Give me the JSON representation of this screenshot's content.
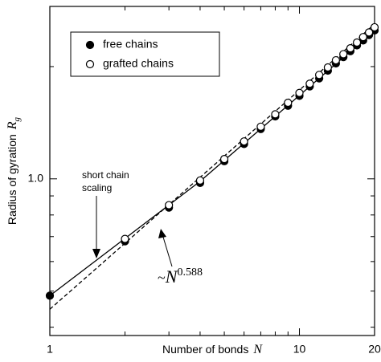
{
  "chart_data": {
    "type": "scatter",
    "xlabel": {
      "text": "Number of bonds",
      "symbol": "N"
    },
    "ylabel": {
      "text": "Radius of gyration",
      "symbol": "R",
      "subscript": "g"
    },
    "log_x": true,
    "log_y": true,
    "xlim": [
      1,
      20
    ],
    "ylim": [
      0.38,
      2.9
    ],
    "xticks": [
      1,
      10,
      20
    ],
    "xminorticks": [
      2,
      3,
      4,
      5,
      6,
      7,
      8,
      9
    ],
    "yticks": [
      {
        "value": 1,
        "label": "1.0"
      }
    ],
    "yminorticks": [
      0.4,
      0.5,
      0.6,
      0.7,
      0.8,
      0.9,
      2
    ],
    "legend": "upper left",
    "series": [
      {
        "name": "free chains",
        "marker": "filled",
        "color": "#000000",
        "x": [
          1,
          2,
          3,
          4,
          5,
          6,
          7,
          8,
          9,
          10,
          11,
          12,
          13,
          14,
          15,
          16,
          17,
          18,
          19,
          20
        ],
        "values": [
          0.486,
          0.68,
          0.837,
          0.975,
          1.115,
          1.24,
          1.36,
          1.47,
          1.57,
          1.67,
          1.77,
          1.86,
          1.95,
          2.04,
          2.12,
          2.2,
          2.28,
          2.35,
          2.43,
          2.5
        ]
      },
      {
        "name": "grafted chains",
        "marker": "open",
        "color": "#000000",
        "x": [
          2,
          3,
          4,
          5,
          6,
          7,
          8,
          9,
          10,
          11,
          12,
          13,
          14,
          15,
          16,
          17,
          18,
          19,
          20
        ],
        "values": [
          0.69,
          0.85,
          0.99,
          1.13,
          1.26,
          1.38,
          1.49,
          1.6,
          1.7,
          1.8,
          1.9,
          1.99,
          2.08,
          2.16,
          2.24,
          2.32,
          2.4,
          2.47,
          2.55
        ]
      }
    ],
    "lines": [
      {
        "style": "solid",
        "x": [
          1,
          4,
          20
        ],
        "values": [
          0.486,
          0.985,
          2.5
        ]
      },
      {
        "style": "dashed",
        "x": [
          1,
          20
        ],
        "values": [
          0.447,
          2.6
        ]
      }
    ],
    "annotations": [
      {
        "lines": [
          "short chain",
          "scaling"
        ]
      },
      {
        "prefix": "~",
        "base": "N",
        "exponent": "0.588"
      }
    ]
  }
}
